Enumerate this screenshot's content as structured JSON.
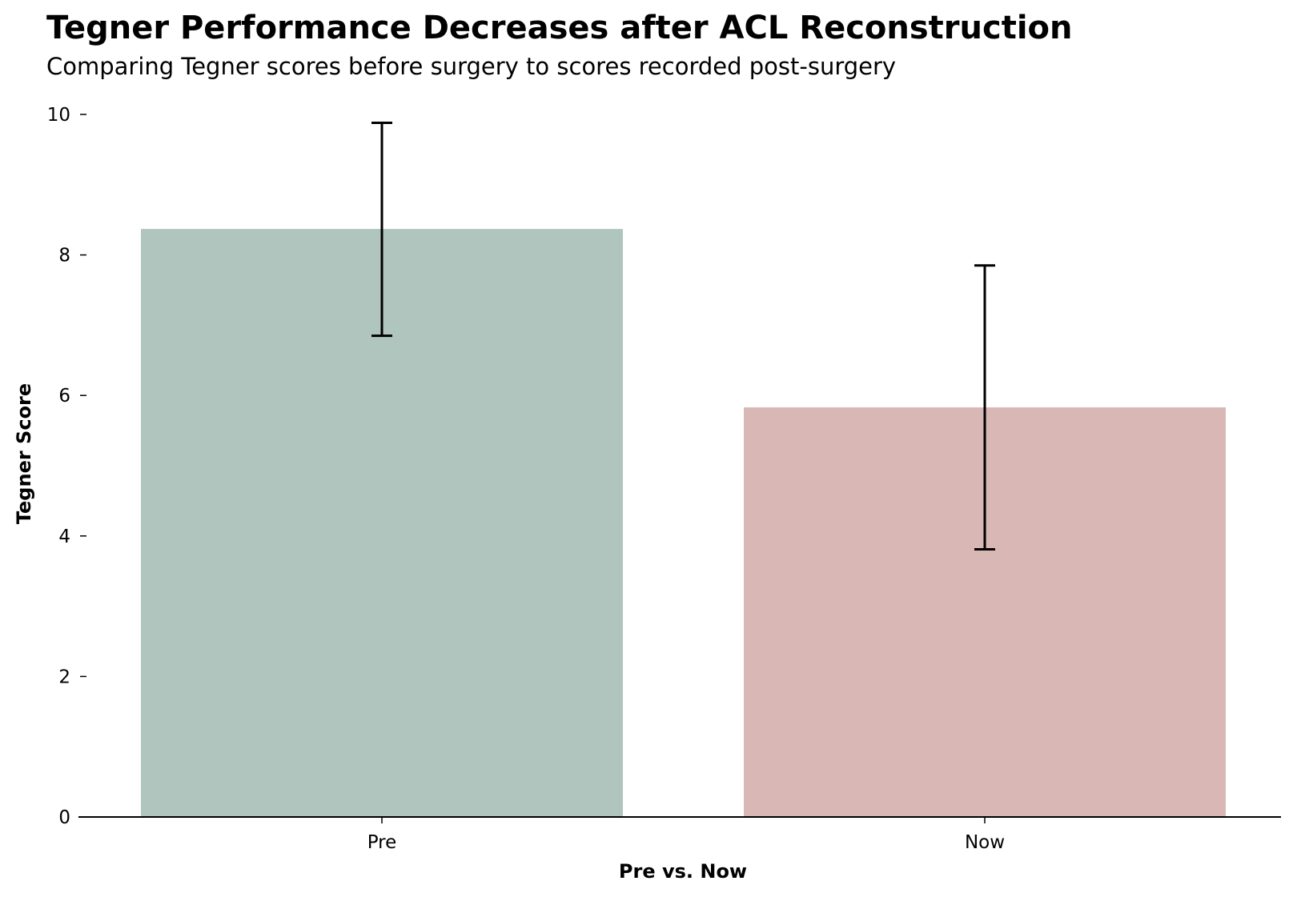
{
  "chart_data": {
    "type": "bar",
    "title": "Tegner Performance Decreases after ACL Reconstruction",
    "subtitle": "Comparing Tegner scores before surgery to scores recorded post-surgery",
    "xlabel": "Pre vs. Now",
    "ylabel": "Tegner Score",
    "categories": [
      "Pre",
      "Now"
    ],
    "values": [
      8.37,
      5.83
    ],
    "error_low": [
      6.85,
      3.81
    ],
    "error_high": [
      9.88,
      7.85
    ],
    "colors": [
      "#afc5bd",
      "#d8b7b4"
    ],
    "ylim": [
      0,
      10
    ],
    "yticks": [
      0,
      2,
      4,
      6,
      8,
      10
    ],
    "grid": false
  }
}
